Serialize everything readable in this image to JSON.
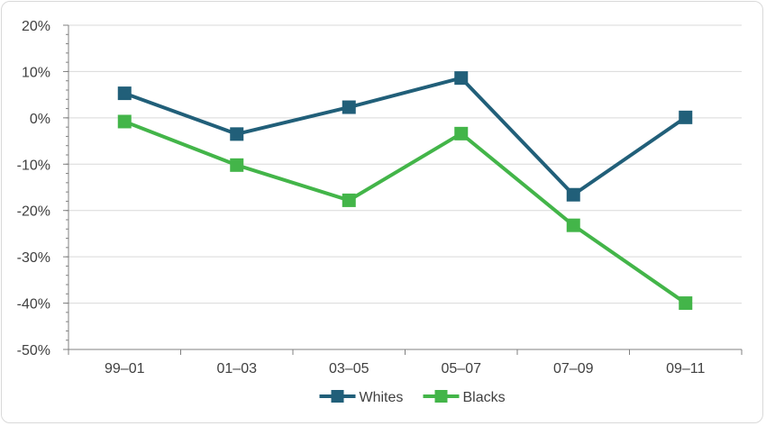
{
  "chart_data": {
    "type": "line",
    "categories": [
      "99–01",
      "01–03",
      "03–05",
      "05–07",
      "07–09",
      "09–11"
    ],
    "series": [
      {
        "name": "Whites",
        "values": [
          5.3,
          -3.5,
          2.3,
          8.6,
          -16.6,
          0.1
        ],
        "color": "#215f79"
      },
      {
        "name": "Blacks",
        "values": [
          -0.8,
          -10.2,
          -17.8,
          -3.4,
          -23.2,
          -40.0
        ],
        "color": "#43b549"
      }
    ],
    "title": "",
    "xlabel": "",
    "ylabel": "",
    "ylim": [
      -50,
      20
    ],
    "ytick_step": 10,
    "ytick_suffix": "%",
    "grid": true,
    "legend_position": "bottom-center"
  }
}
